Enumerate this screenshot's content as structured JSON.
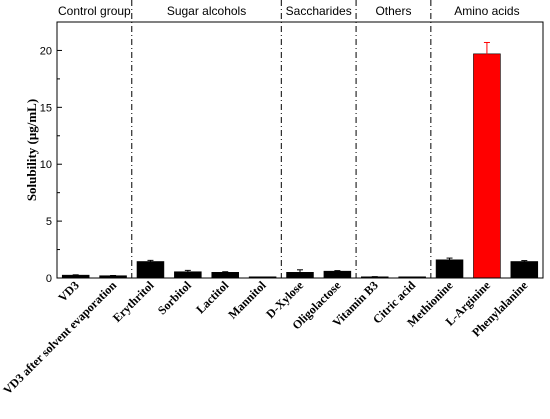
{
  "chart_data": {
    "type": "bar",
    "title": "",
    "xlabel": "",
    "ylabel": "Solubility (μg/mL)",
    "ylim": [
      0,
      22.5
    ],
    "yticks": [
      0,
      5,
      10,
      15,
      20
    ],
    "grid": false,
    "groups": [
      {
        "name": "Control group",
        "categories": [
          "VD3",
          "VD3 after solvent evaporation"
        ]
      },
      {
        "name": "Sugar alcohols",
        "categories": [
          "Erythritol",
          "Sorbitol",
          "Lactitol",
          "Mannitol"
        ]
      },
      {
        "name": "Saccharides",
        "categories": [
          "D-Xylose",
          "Oligolactose"
        ]
      },
      {
        "name": "Others",
        "categories": [
          "Vitamin B3",
          "Citric acid"
        ]
      },
      {
        "name": "Amino acids",
        "categories": [
          "Methionine",
          "L-Arginine",
          "Phenylalanine"
        ]
      }
    ],
    "categories": [
      "VD3",
      "VD3 after solvent evaporation",
      "Erythritol",
      "Sorbitol",
      "Lactitol",
      "Mannitol",
      "D-Xylose",
      "Oligolactose",
      "Vitamin B3",
      "Citric acid",
      "Methionine",
      "L-Arginine",
      "Phenylalanine"
    ],
    "values": [
      0.25,
      0.2,
      1.45,
      0.55,
      0.5,
      0.05,
      0.5,
      0.6,
      0.1,
      0.02,
      1.6,
      19.7,
      1.45
    ],
    "errors": [
      0.03,
      0.02,
      0.1,
      0.12,
      0.05,
      0.01,
      0.22,
      0.05,
      0.02,
      0.0,
      0.15,
      1.0,
      0.08
    ],
    "colors": [
      "#000000",
      "#000000",
      "#000000",
      "#000000",
      "#000000",
      "#000000",
      "#000000",
      "#000000",
      "#000000",
      "#000000",
      "#000000",
      "#ff0000",
      "#000000"
    ],
    "separator_style": "dash-dot"
  }
}
